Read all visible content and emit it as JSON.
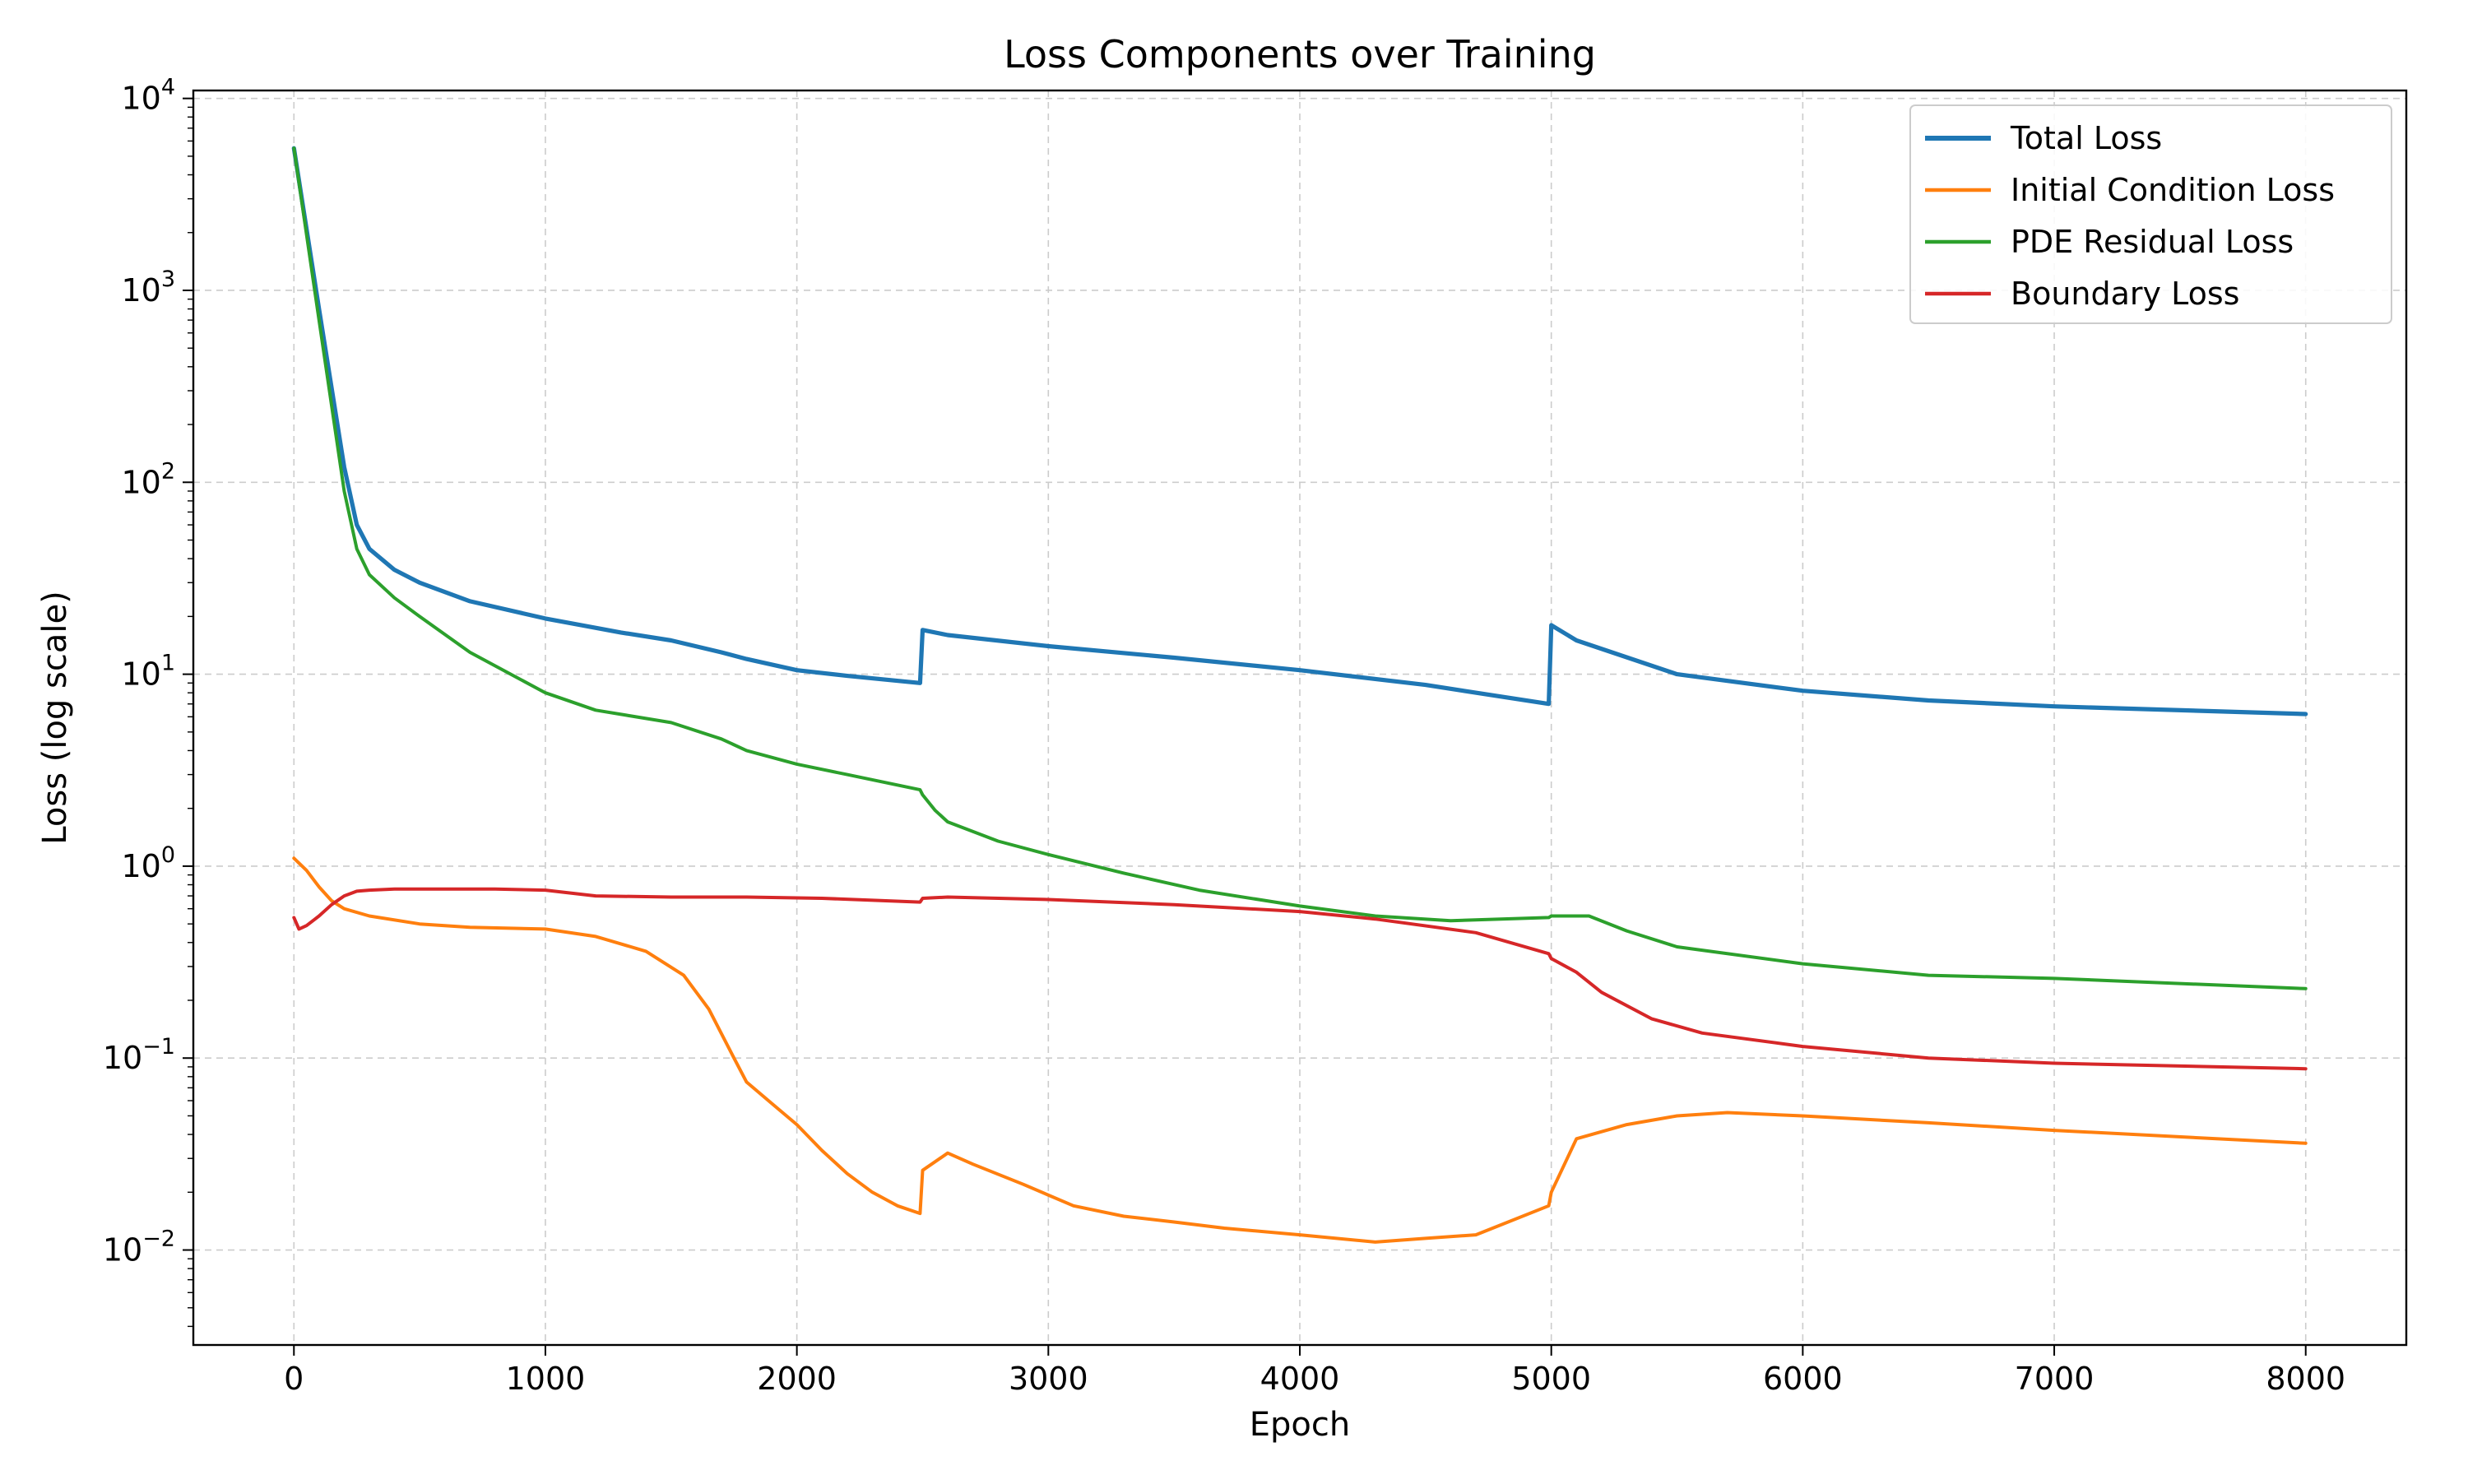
{
  "chart_data": {
    "type": "line",
    "title": "Loss Components over Training",
    "xlabel": "Epoch",
    "ylabel": "Loss (log scale)",
    "y_scale": "log",
    "xlim": [
      -400,
      8400
    ],
    "ylim": [
      0.0032,
      11000
    ],
    "grid": true,
    "legend_position": "top-right",
    "x_ticks": [
      {
        "value": 0,
        "label": "0"
      },
      {
        "value": 1000,
        "label": "1000"
      },
      {
        "value": 2000,
        "label": "2000"
      },
      {
        "value": 3000,
        "label": "3000"
      },
      {
        "value": 4000,
        "label": "4000"
      },
      {
        "value": 5000,
        "label": "5000"
      },
      {
        "value": 6000,
        "label": "6000"
      },
      {
        "value": 7000,
        "label": "7000"
      },
      {
        "value": 8000,
        "label": "8000"
      }
    ],
    "y_ticks": [
      {
        "value": 0.01,
        "base": "10",
        "exp": "−2"
      },
      {
        "value": 0.1,
        "base": "10",
        "exp": "−1"
      },
      {
        "value": 1,
        "base": "10",
        "exp": "0"
      },
      {
        "value": 10,
        "base": "10",
        "exp": "1"
      },
      {
        "value": 100,
        "base": "10",
        "exp": "2"
      },
      {
        "value": 1000,
        "base": "10",
        "exp": "3"
      },
      {
        "value": 10000,
        "base": "10",
        "exp": "4"
      }
    ],
    "series": [
      {
        "name": "Total Loss",
        "color": "#1f77b4",
        "noise": 0.0,
        "x": [
          0,
          100,
          200,
          250,
          300,
          400,
          500,
          700,
          1000,
          1300,
          1500,
          1700,
          1800,
          2000,
          2200,
          2490,
          2500,
          2600,
          3000,
          3500,
          4000,
          4500,
          4990,
          5000,
          5100,
          5500,
          6000,
          6500,
          7000,
          8000
        ],
        "y": [
          5500,
          800,
          120,
          60,
          45,
          35,
          30,
          24,
          19.5,
          16.5,
          15,
          13,
          12,
          10.5,
          9.8,
          9,
          17,
          16,
          14,
          12.2,
          10.5,
          8.8,
          7,
          18,
          15,
          10,
          8.2,
          7.3,
          6.8,
          6.2
        ]
      },
      {
        "name": "Initial Condition Loss",
        "color": "#ff7f0e",
        "noise": 0.0,
        "x": [
          0,
          50,
          100,
          150,
          200,
          300,
          500,
          700,
          1000,
          1200,
          1400,
          1550,
          1650,
          1750,
          1800,
          1900,
          2000,
          2100,
          2200,
          2300,
          2400,
          2490,
          2500,
          2600,
          2700,
          2900,
          3100,
          3300,
          3500,
          3700,
          4000,
          4300,
          4500,
          4700,
          4990,
          5000,
          5100,
          5300,
          5500,
          5700,
          6000,
          6500,
          7000,
          8000
        ],
        "y": [
          1.1,
          0.95,
          0.78,
          0.66,
          0.6,
          0.55,
          0.5,
          0.48,
          0.47,
          0.43,
          0.36,
          0.27,
          0.18,
          0.1,
          0.075,
          0.058,
          0.045,
          0.033,
          0.025,
          0.02,
          0.017,
          0.0155,
          0.026,
          0.032,
          0.028,
          0.022,
          0.017,
          0.015,
          0.014,
          0.013,
          0.012,
          0.011,
          0.0115,
          0.012,
          0.017,
          0.02,
          0.038,
          0.045,
          0.05,
          0.052,
          0.05,
          0.046,
          0.042,
          0.036
        ]
      },
      {
        "name": "PDE Residual Loss",
        "color": "#2ca02c",
        "noise": 0.0,
        "x": [
          0,
          100,
          200,
          250,
          300,
          400,
          500,
          700,
          1000,
          1200,
          1500,
          1700,
          1800,
          2000,
          2200,
          2490,
          2500,
          2550,
          2600,
          2800,
          3000,
          3300,
          3600,
          4000,
          4300,
          4600,
          4990,
          5000,
          5150,
          5300,
          5500,
          6000,
          6500,
          7000,
          8000
        ],
        "y": [
          5500,
          700,
          90,
          45,
          33,
          25,
          20,
          13,
          8,
          6.5,
          5.6,
          4.6,
          4,
          3.4,
          3,
          2.5,
          2.35,
          1.95,
          1.7,
          1.35,
          1.15,
          0.92,
          0.75,
          0.62,
          0.55,
          0.52,
          0.54,
          0.55,
          0.55,
          0.46,
          0.38,
          0.31,
          0.27,
          0.26,
          0.23
        ]
      },
      {
        "name": "Boundary Loss",
        "color": "#d62728",
        "noise": 0.0,
        "x": [
          0,
          20,
          50,
          100,
          150,
          200,
          250,
          300,
          400,
          600,
          800,
          1000,
          1200,
          1500,
          1800,
          2100,
          2490,
          2500,
          2600,
          3000,
          3500,
          4000,
          4300,
          4700,
          4990,
          5000,
          5100,
          5200,
          5400,
          5600,
          6000,
          6500,
          7000,
          8000
        ],
        "y": [
          0.54,
          0.47,
          0.49,
          0.55,
          0.63,
          0.7,
          0.74,
          0.75,
          0.76,
          0.76,
          0.76,
          0.75,
          0.7,
          0.69,
          0.69,
          0.68,
          0.65,
          0.68,
          0.69,
          0.67,
          0.63,
          0.58,
          0.53,
          0.45,
          0.35,
          0.33,
          0.28,
          0.22,
          0.16,
          0.135,
          0.115,
          0.1,
          0.094,
          0.088
        ]
      }
    ]
  }
}
